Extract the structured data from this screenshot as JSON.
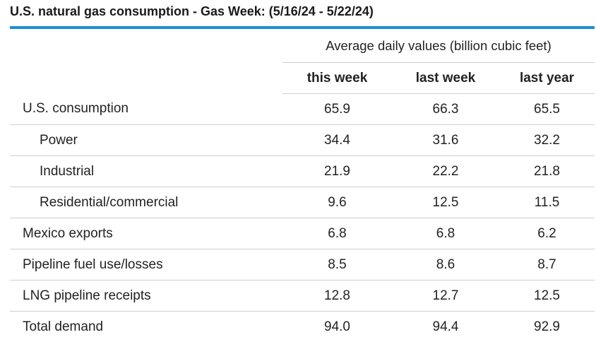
{
  "title": "U.S. natural gas consumption - Gas Week: (5/16/24 - 5/22/24)",
  "accent_color": "#1a8fd6",
  "table": {
    "group_header": "Average daily values (billion cubic feet)",
    "columns": [
      "this week",
      "last week",
      "last year"
    ],
    "rows": [
      {
        "label": "U.S. consumption",
        "indent": false,
        "values": [
          "65.9",
          "66.3",
          "65.5"
        ]
      },
      {
        "label": "Power",
        "indent": true,
        "values": [
          "34.4",
          "31.6",
          "32.2"
        ]
      },
      {
        "label": "Industrial",
        "indent": true,
        "values": [
          "21.9",
          "22.2",
          "21.8"
        ]
      },
      {
        "label": "Residential/commercial",
        "indent": true,
        "values": [
          "9.6",
          "12.5",
          "11.5"
        ]
      },
      {
        "label": "Mexico exports",
        "indent": false,
        "values": [
          "6.8",
          "6.8",
          "6.2"
        ]
      },
      {
        "label": "Pipeline fuel use/losses",
        "indent": false,
        "values": [
          "8.5",
          "8.6",
          "8.7"
        ]
      },
      {
        "label": "LNG pipeline receipts",
        "indent": false,
        "values": [
          "12.8",
          "12.7",
          "12.5"
        ]
      },
      {
        "label": "Total demand",
        "indent": false,
        "values": [
          "94.0",
          "94.4",
          "92.9"
        ]
      }
    ]
  }
}
